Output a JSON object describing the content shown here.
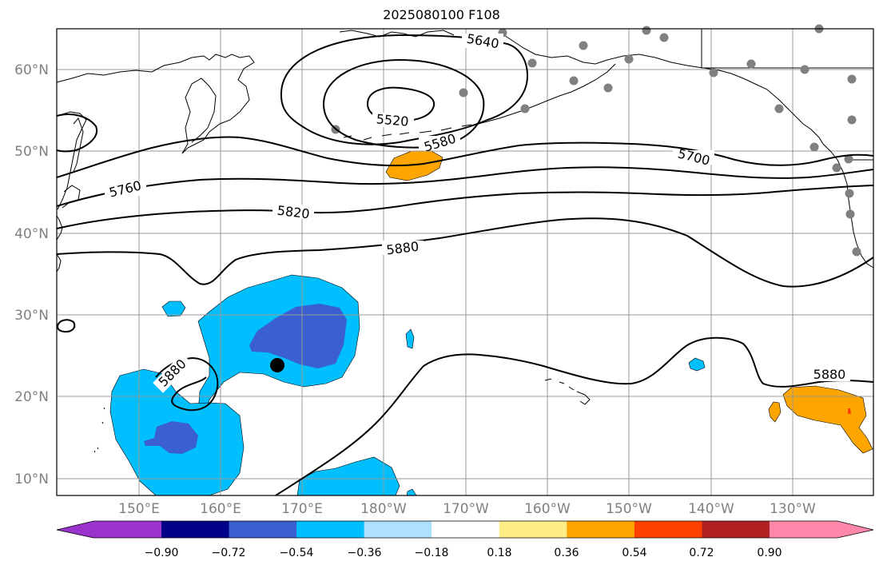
{
  "title": "2025080100 F108",
  "latitude_labels": [
    "60°N",
    "50°N",
    "40°N",
    "30°N",
    "20°N",
    "10°N"
  ],
  "longitude_labels": [
    "150°E",
    "160°E",
    "170°E",
    "180°W",
    "170°W",
    "160°W",
    "150°W",
    "140°W",
    "130°W"
  ],
  "contours": [
    {
      "value": "5520"
    },
    {
      "value": "5580"
    },
    {
      "value": "5640"
    },
    {
      "value": "5700"
    },
    {
      "value": "5760"
    },
    {
      "value": "5820"
    },
    {
      "value": "5880"
    },
    {
      "value": "5880"
    },
    {
      "value": "5880"
    }
  ],
  "colorbar": {
    "tick_labels": [
      "−0.90",
      "−0.72",
      "−0.54",
      "−0.36",
      "−0.18",
      "0.18",
      "0.36",
      "0.54",
      "0.72",
      "0.90"
    ],
    "colors": [
      "#9933cc",
      "#000088",
      "#3c5fd0",
      "#00bfff",
      "#b0e0ff",
      "#ffffff",
      "#ffee88",
      "#ffa500",
      "#ff4000",
      "#b22222",
      "#ff88aa"
    ]
  },
  "colors": {
    "positive_anomaly": "#ffa500",
    "negative_light": "#00bfff",
    "negative_dark": "#3c5fd0",
    "station_marker": "#808080",
    "gridline": "#999999"
  }
}
